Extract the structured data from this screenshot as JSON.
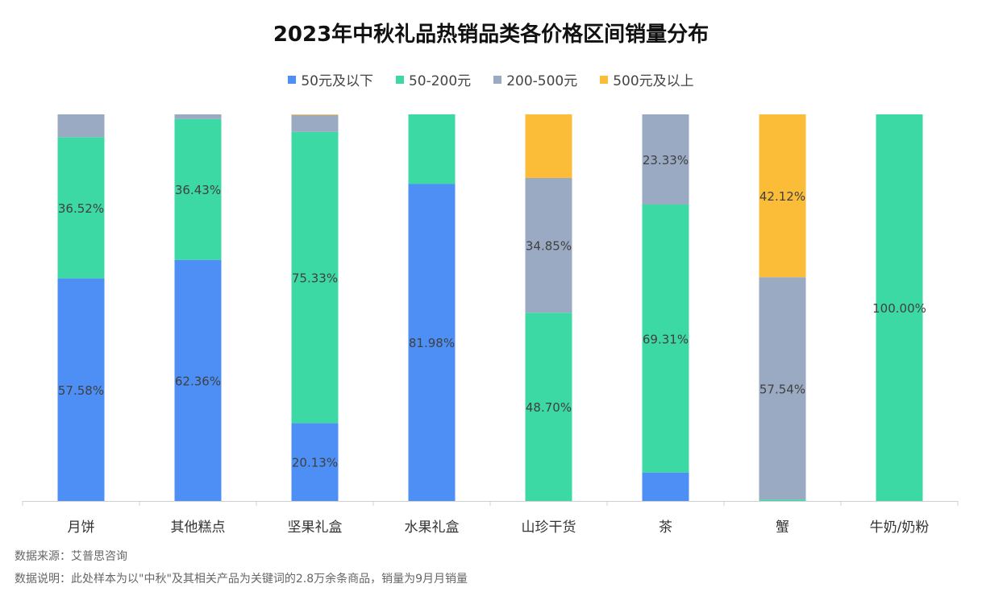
{
  "chart_data": {
    "type": "bar",
    "stacked": true,
    "title": "2023年中秋礼品热销品类各价格区间销量分布",
    "categories": [
      "月饼",
      "其他糕点",
      "坚果礼盒",
      "水果礼盒",
      "山珍干货",
      "茶",
      "蟹",
      "牛奶/奶粉"
    ],
    "series": [
      {
        "name": "50元及以下",
        "color": "#4d8ff5",
        "values": [
          57.58,
          62.36,
          20.13,
          81.98,
          0,
          7.36,
          0,
          0
        ],
        "labels": [
          "57.58%",
          "62.36%",
          "20.13%",
          "81.98%",
          "",
          "",
          "",
          ""
        ]
      },
      {
        "name": "50-200元",
        "color": "#3dd9a4",
        "values": [
          36.52,
          36.43,
          75.33,
          18.02,
          48.7,
          69.31,
          0.34,
          100.0
        ],
        "labels": [
          "36.52%",
          "36.43%",
          "75.33%",
          "",
          "48.70%",
          "69.31%",
          "",
          "100.00%"
        ]
      },
      {
        "name": "200-500元",
        "color": "#9aaac2",
        "values": [
          5.9,
          1.21,
          4.36,
          0,
          34.85,
          23.33,
          57.54,
          0
        ],
        "labels": [
          "",
          "",
          "",
          "",
          "34.85%",
          "23.33%",
          "57.54%",
          ""
        ]
      },
      {
        "name": "500元及以上",
        "color": "#fbbd38",
        "values": [
          0,
          0,
          0.18,
          0,
          16.45,
          0,
          42.12,
          0
        ],
        "labels": [
          "",
          "",
          "",
          "",
          "",
          "",
          "42.12%",
          ""
        ]
      }
    ],
    "ylim": [
      0,
      100
    ],
    "grid": false,
    "legend": "top-center"
  },
  "footnotes": {
    "source": "数据来源：艾普思咨询",
    "description": "数据说明：此处样本为以\"中秋\"及其相关产品为关键词的2.8万余条商品，销量为9月月销量"
  }
}
